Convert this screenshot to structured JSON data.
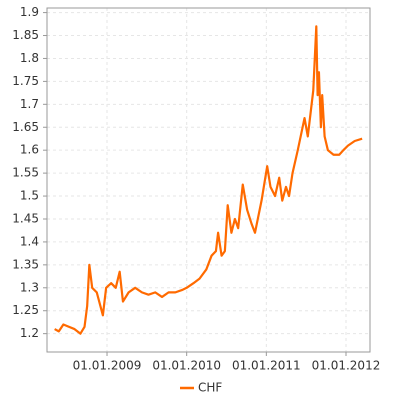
{
  "chart_data": {
    "type": "line",
    "x": [
      "2008-05-06",
      "2008-05-25",
      "2008-06-15",
      "2008-07-10",
      "2008-08-05",
      "2008-09-01",
      "2008-09-20",
      "2008-10-02",
      "2008-10-12",
      "2008-10-25",
      "2008-11-15",
      "2008-12-13",
      "2008-12-28",
      "2009-01-20",
      "2009-02-10",
      "2009-02-28",
      "2009-03-15",
      "2009-04-10",
      "2009-05-10",
      "2009-06-10",
      "2009-07-10",
      "2009-08-10",
      "2009-09-10",
      "2009-10-10",
      "2009-11-10",
      "2009-12-10",
      "2010-01-01",
      "2010-02-01",
      "2010-03-01",
      "2010-04-01",
      "2010-04-25",
      "2010-05-15",
      "2010-05-25",
      "2010-06-10",
      "2010-06-25",
      "2010-07-08",
      "2010-07-25",
      "2010-08-10",
      "2010-08-25",
      "2010-09-15",
      "2010-10-05",
      "2010-10-25",
      "2010-11-10",
      "2010-12-10",
      "2011-01-05",
      "2011-01-20",
      "2011-02-10",
      "2011-03-01",
      "2011-03-15",
      "2011-04-01",
      "2011-04-15",
      "2011-05-01",
      "2011-05-25",
      "2011-06-25",
      "2011-07-10",
      "2011-08-04",
      "2011-08-18",
      "2011-08-24",
      "2011-08-30",
      "2011-09-08",
      "2011-09-14",
      "2011-09-25",
      "2011-10-10",
      "2011-11-05",
      "2011-12-01",
      "2011-12-20",
      "2012-01-10",
      "2012-02-10",
      "2012-03-15"
    ],
    "series": [
      {
        "name": "CHF",
        "color": "#ff6a00",
        "values": [
          1.21,
          1.205,
          1.22,
          1.215,
          1.21,
          1.2,
          1.215,
          1.26,
          1.35,
          1.3,
          1.29,
          1.24,
          1.3,
          1.31,
          1.3,
          1.335,
          1.27,
          1.29,
          1.3,
          1.29,
          1.285,
          1.29,
          1.28,
          1.29,
          1.29,
          1.295,
          1.3,
          1.31,
          1.32,
          1.34,
          1.37,
          1.38,
          1.42,
          1.37,
          1.38,
          1.48,
          1.42,
          1.45,
          1.43,
          1.525,
          1.47,
          1.44,
          1.42,
          1.49,
          1.565,
          1.52,
          1.5,
          1.54,
          1.49,
          1.52,
          1.5,
          1.55,
          1.6,
          1.67,
          1.63,
          1.73,
          1.87,
          1.72,
          1.77,
          1.65,
          1.72,
          1.63,
          1.6,
          1.59,
          1.59,
          1.6,
          1.61,
          1.62,
          1.625
        ]
      }
    ],
    "xlim": [
      "2008-04-01",
      "2012-04-20"
    ],
    "xticks": [
      {
        "value": "2009-01-01",
        "label": "01.01.2009"
      },
      {
        "value": "2010-01-01",
        "label": "01.01.2010"
      },
      {
        "value": "2011-01-01",
        "label": "01.01.2011"
      },
      {
        "value": "2012-01-01",
        "label": "01.01.2012"
      }
    ],
    "ylim": [
      1.16,
      1.91
    ],
    "yticks": [
      1.2,
      1.25,
      1.3,
      1.35,
      1.4,
      1.45,
      1.5,
      1.55,
      1.6,
      1.65,
      1.7,
      1.75,
      1.8,
      1.85,
      1.9
    ],
    "grid": true
  }
}
